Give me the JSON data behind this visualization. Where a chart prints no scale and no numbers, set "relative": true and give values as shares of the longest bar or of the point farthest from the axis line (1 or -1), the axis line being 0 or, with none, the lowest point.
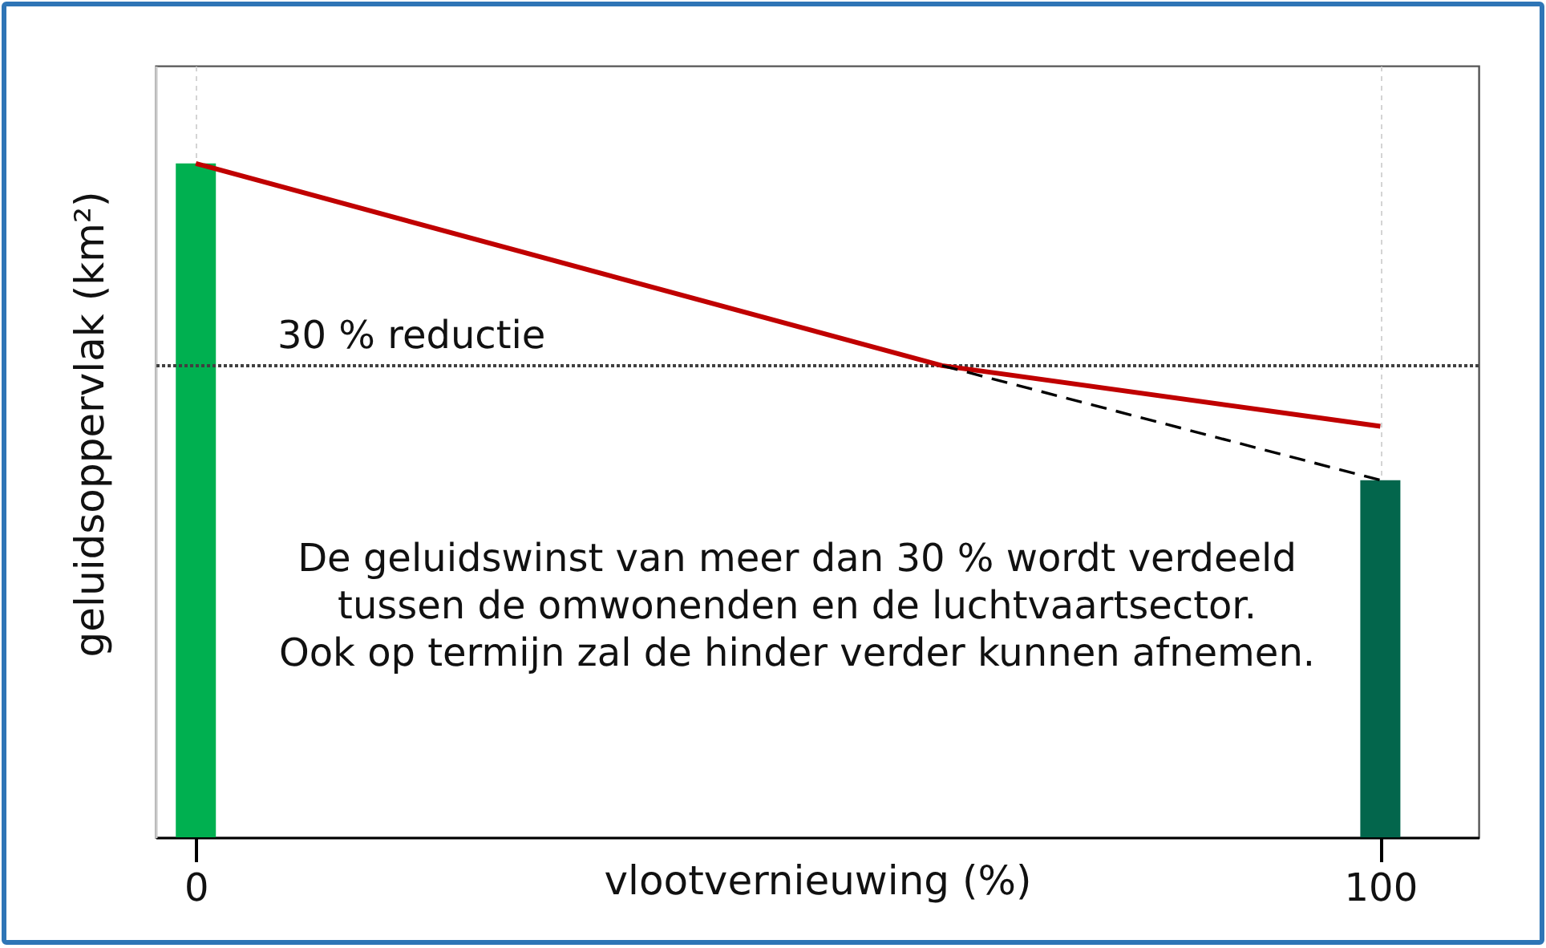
{
  "chart_data": {
    "type": "bar",
    "x": [
      0,
      100
    ],
    "xlabel": "vlootvernieuwing (%)",
    "ylabel": "geluidsoppervlak (km²)",
    "xlim": [
      -3.4,
      108.3
    ],
    "xticks": [
      0,
      100
    ],
    "relative": true,
    "grid": "x",
    "series": [
      {
        "values": [
          1,
          0.53
        ],
        "colors": [
          "#00b050",
          "#03664c"
        ]
      },
      {
        "type": "line",
        "x": [
          0,
          63,
          100
        ],
        "values": [
          1,
          0.7,
          0.61
        ],
        "color": "#c00000",
        "line_style": "solid"
      },
      {
        "type": "line",
        "x": [
          63,
          100
        ],
        "values": [
          0.7,
          0.53
        ],
        "color": "#000000",
        "line_style": "dashed"
      }
    ],
    "ref_lines": [
      {
        "axis": "y",
        "value": 0.7,
        "label": "30 % reductie",
        "color": "#404040",
        "line_style": "dotted"
      }
    ],
    "annotations": [
      "De geluidswinst van meer dan 30 % wordt verdeeld\ntussen de omwonenden en de luchtvaartsector.\nOok op termijn zal de hinder verder kunnen afnemen."
    ]
  }
}
